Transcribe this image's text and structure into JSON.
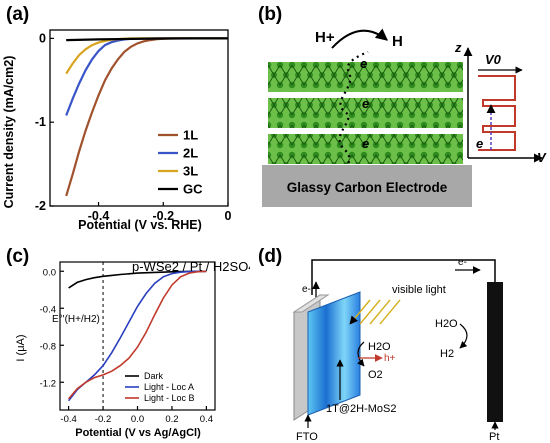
{
  "panels": [
    {
      "label": "(a)"
    },
    {
      "label": "(b)"
    },
    {
      "label": "(c)"
    },
    {
      "label": "(d)"
    }
  ],
  "chart_data": [
    {
      "type": "line",
      "panel": "(a)",
      "xlabel": "Potential (V vs. RHE)",
      "ylabel": "Current density (mA/cm2)",
      "xlim": [
        -0.55,
        0.0
      ],
      "ylim": [
        -2.0,
        0.1
      ],
      "xticks": [
        -0.4,
        -0.2,
        0
      ],
      "xtick_labels": [
        "-0.4",
        "-0.2",
        "0"
      ],
      "yticks": [
        0,
        -1,
        -2
      ],
      "ytick_labels": [
        "0",
        "-1",
        "-2"
      ],
      "legend_position": "bottom-right",
      "series": [
        {
          "name": "1L",
          "color": "#a0522d",
          "x": [
            -0.5,
            -0.48,
            -0.46,
            -0.44,
            -0.42,
            -0.4,
            -0.38,
            -0.36,
            -0.34,
            -0.32,
            -0.3,
            -0.28,
            -0.26,
            -0.24,
            -0.22,
            -0.2,
            -0.18,
            -0.15,
            0.0
          ],
          "y": [
            -1.88,
            -1.62,
            -1.35,
            -1.1,
            -0.88,
            -0.68,
            -0.5,
            -0.36,
            -0.25,
            -0.16,
            -0.1,
            -0.06,
            -0.035,
            -0.02,
            -0.01,
            -0.005,
            -0.002,
            0,
            0
          ]
        },
        {
          "name": "2L",
          "color": "#3a55c8",
          "x": [
            -0.5,
            -0.48,
            -0.46,
            -0.44,
            -0.42,
            -0.4,
            -0.38,
            -0.36,
            -0.34,
            -0.32,
            -0.3,
            -0.28,
            -0.25,
            -0.22,
            0.0
          ],
          "y": [
            -0.92,
            -0.72,
            -0.54,
            -0.38,
            -0.25,
            -0.15,
            -0.08,
            -0.045,
            -0.025,
            -0.012,
            -0.006,
            -0.003,
            -0.001,
            0,
            0
          ]
        },
        {
          "name": "3L",
          "color": "#d9a520",
          "x": [
            -0.5,
            -0.48,
            -0.46,
            -0.44,
            -0.42,
            -0.4,
            -0.38,
            -0.36,
            -0.34,
            -0.32,
            -0.3,
            -0.27,
            0.0
          ],
          "y": [
            -0.42,
            -0.3,
            -0.2,
            -0.13,
            -0.08,
            -0.05,
            -0.03,
            -0.016,
            -0.008,
            -0.004,
            -0.002,
            0,
            0
          ]
        },
        {
          "name": "GC",
          "color": "#000000",
          "x": [
            -0.5,
            -0.4,
            -0.3,
            -0.2,
            -0.1,
            0.0
          ],
          "y": [
            -0.02,
            -0.012,
            -0.006,
            -0.002,
            0,
            0
          ]
        }
      ]
    },
    {
      "type": "line",
      "panel": "(c)",
      "title": "p-WSe2 / Pt / H2SO4",
      "xlabel": "Potential (V vs Ag/AgCl)",
      "ylabel": "I (μA)",
      "xlim": [
        -0.45,
        0.45
      ],
      "ylim": [
        -1.5,
        0.1
      ],
      "xticks": [
        -0.4,
        -0.2,
        0.0,
        0.2,
        0.4
      ],
      "xtick_labels": [
        "-0.4",
        "-0.2",
        "0.0",
        "0.2",
        "0.4"
      ],
      "yticks": [
        0.0,
        -0.4,
        -0.8,
        -1.2
      ],
      "ytick_labels": [
        "0.0",
        "-0.4",
        "-0.8",
        "-1.2"
      ],
      "annotation": "E°'(H+/H2)",
      "annotation_x": -0.2,
      "legend_position": "bottom-right",
      "series": [
        {
          "name": "Dark",
          "color": "#000000",
          "x": [
            -0.4,
            -0.35,
            -0.3,
            -0.25,
            -0.2,
            -0.15,
            -0.1,
            -0.05,
            0.0,
            0.1,
            0.2,
            0.3,
            0.4
          ],
          "y": [
            -0.18,
            -0.12,
            -0.09,
            -0.07,
            -0.055,
            -0.045,
            -0.035,
            -0.028,
            -0.02,
            -0.012,
            -0.006,
            -0.002,
            0.0
          ]
        },
        {
          "name": "Light - Loc A",
          "color": "#2a3fbf",
          "x": [
            -0.4,
            -0.35,
            -0.3,
            -0.25,
            -0.2,
            -0.15,
            -0.1,
            -0.05,
            0.0,
            0.05,
            0.1,
            0.15,
            0.2,
            0.25,
            0.3,
            0.35,
            0.4
          ],
          "y": [
            -1.4,
            -1.28,
            -1.2,
            -1.12,
            -1.02,
            -0.88,
            -0.72,
            -0.55,
            -0.38,
            -0.24,
            -0.13,
            -0.06,
            -0.025,
            -0.01,
            -0.004,
            -0.001,
            0.0
          ]
        },
        {
          "name": "Light - Loc B",
          "color": "#c0392b",
          "x": [
            -0.4,
            -0.35,
            -0.3,
            -0.25,
            -0.2,
            -0.15,
            -0.1,
            -0.05,
            0.0,
            0.05,
            0.1,
            0.15,
            0.2,
            0.25,
            0.3,
            0.35,
            0.4
          ],
          "y": [
            -1.38,
            -1.27,
            -1.2,
            -1.15,
            -1.12,
            -1.08,
            -1.02,
            -0.94,
            -0.82,
            -0.66,
            -0.47,
            -0.29,
            -0.15,
            -0.06,
            -0.02,
            -0.005,
            0.0
          ]
        }
      ]
    }
  ],
  "panel_b": {
    "proton": "H+",
    "hydrogen": "H",
    "electron": "e",
    "electrode": "Glassy Carbon Electrode",
    "z_axis": "z",
    "v_axis": "V",
    "barrier": "V0",
    "barrier_electron": "e"
  },
  "panel_d": {
    "electron_top": "e-",
    "electron_left": "e-",
    "light": "visible light",
    "water": "H2O",
    "hole": "h+",
    "oxygen": "O2",
    "material": "1T@2H-MoS2",
    "water_right": "H2O",
    "hydrogen": "H2",
    "left_electrode": "FTO",
    "right_electrode": "Pt"
  }
}
